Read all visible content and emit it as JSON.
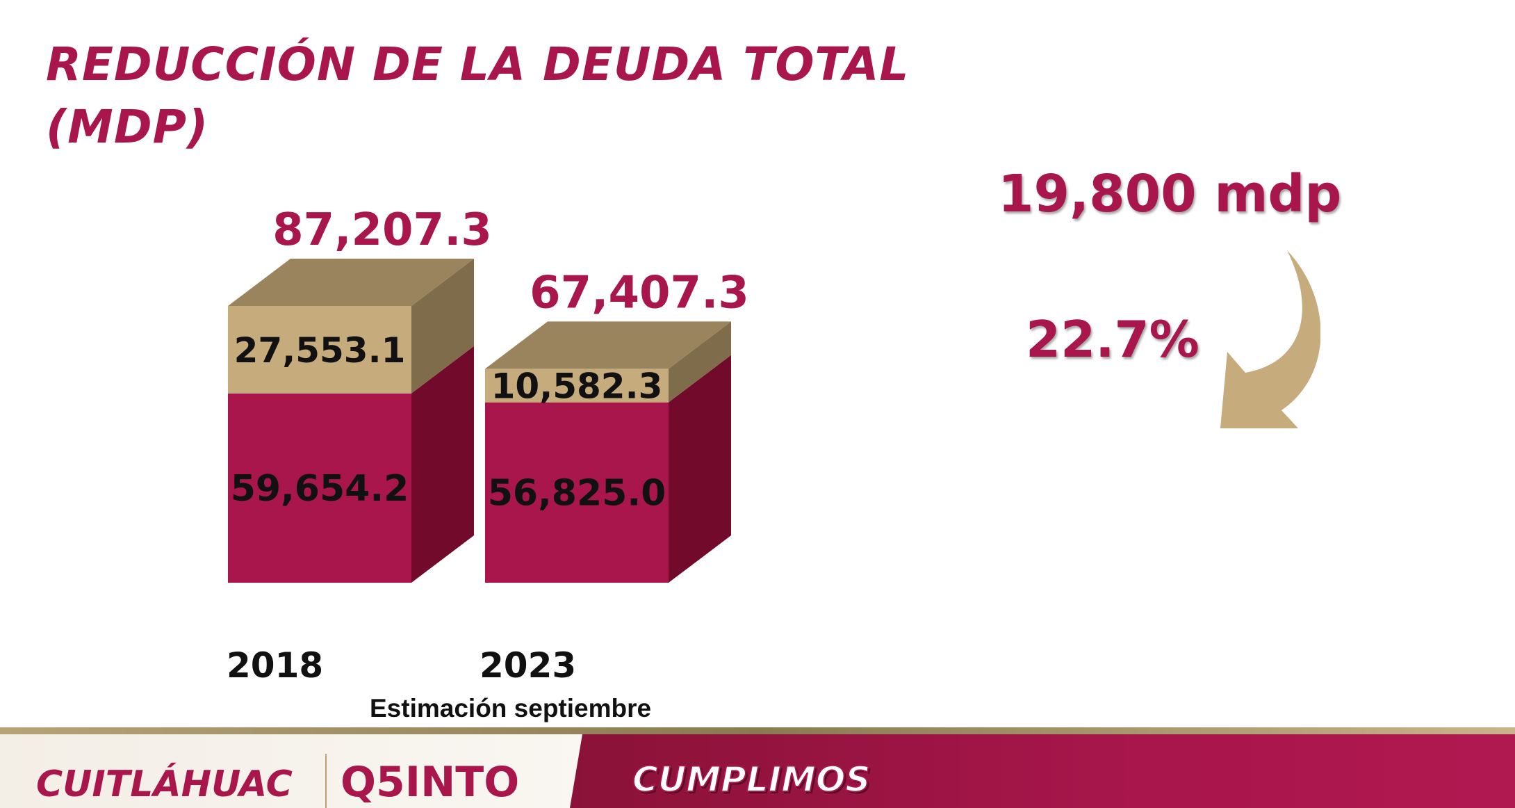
{
  "header": {
    "title_line1": "REDUCCIÓN DE LA DEUDA TOTAL",
    "title_line2": "(MDP)"
  },
  "colors": {
    "crimson": "#a8164b",
    "crimson_dark": "#720a2b",
    "tan": "#c6ab7c",
    "tan_top": "#9a845d",
    "tan_side": "#7e6c4b"
  },
  "chart_data": {
    "type": "bar",
    "title": "REDUCCIÓN DE LA DEUDA TOTAL (MDP)",
    "categories": [
      "2018",
      "2023"
    ],
    "category_note": "Estimación septiembre",
    "totals": [
      "87,207.3",
      "67,407.3"
    ],
    "series": [
      {
        "values": [
          59654.2,
          56825.0
        ],
        "labels": [
          "59,654.2",
          "56,825.0"
        ],
        "color": "#a8164b"
      },
      {
        "values": [
          27553.1,
          10582.3
        ],
        "labels": [
          "27,553.1",
          "10,582.3"
        ],
        "color": "#c6ab7c"
      }
    ],
    "ylim": [
      0,
      87207.3
    ],
    "grid": false,
    "legend": "none"
  },
  "summary": {
    "amount": "19,800 mdp",
    "percent": "22.7%",
    "arrow_icon": "curved-down-arrow-icon"
  },
  "footer": {
    "brand": "CUITLÁHUAC",
    "badge": "Q5INTO",
    "slogan": "CUMPLIMOS"
  }
}
